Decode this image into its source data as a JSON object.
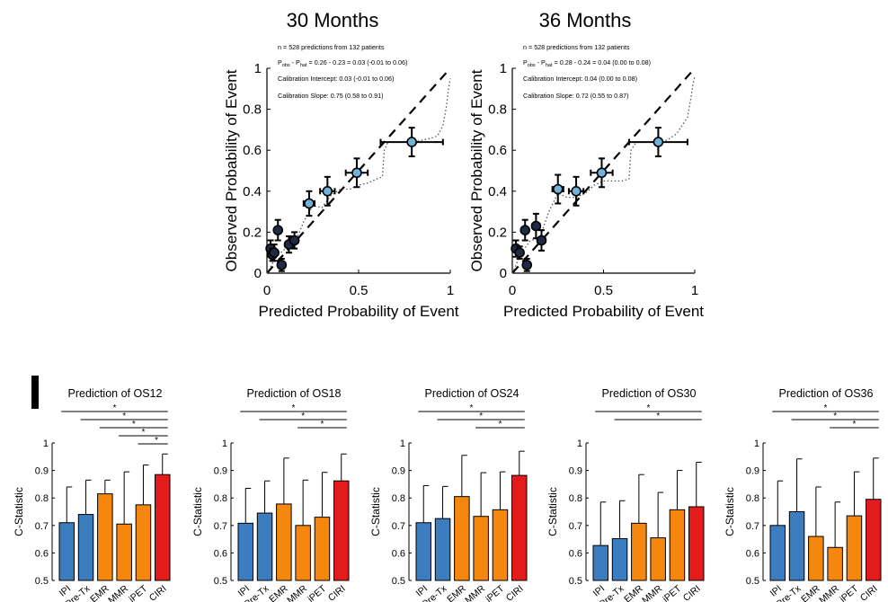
{
  "colors": {
    "point_fill": "#6FB2DA",
    "point_fill_dark": "#1F2A44",
    "bar_blue": "#3B7DBE",
    "bar_orange": "#F5870F",
    "bar_red": "#E31B1B",
    "ink": "#000000"
  },
  "chart_data": [
    {
      "type": "scatter",
      "title": "30 Months",
      "xlabel": "Predicted Probability of Event",
      "ylabel": "Observed Probability of Event",
      "xlim": [
        0,
        1
      ],
      "ylim": [
        0,
        1
      ],
      "xticks": [
        "0",
        "0.5",
        "1"
      ],
      "yticks": [
        "0",
        "0.2",
        "0.4",
        "0.6",
        "0.8",
        "1"
      ],
      "annotations": [
        {
          "text": "n = 528 predictions from 132 patients"
        },
        {
          "text": "P",
          "sub1": "obs",
          "mid": " - P",
          "sub2": "hat",
          "rest": " = 0.26 - 0.23 = 0.03 (-0.01 to 0.06)"
        },
        {
          "text": "Calibration Intercept: 0.03 (-0.01 to 0.06)"
        },
        {
          "text": "Calibration Slope: 0.75 (0.58 to 0.91)"
        }
      ],
      "points": [
        {
          "x": 0.02,
          "y": 0.12,
          "xerr": 0.01,
          "yerr": 0.04,
          "dark": true
        },
        {
          "x": 0.03,
          "y": 0.09,
          "xerr": 0.01,
          "yerr": 0.03,
          "dark": true
        },
        {
          "x": 0.04,
          "y": 0.1,
          "xerr": 0.01,
          "yerr": 0.04,
          "dark": true
        },
        {
          "x": 0.06,
          "y": 0.21,
          "xerr": 0.01,
          "yerr": 0.05,
          "dark": true
        },
        {
          "x": 0.08,
          "y": 0.04,
          "xerr": 0.01,
          "yerr": 0.03,
          "dark": true
        },
        {
          "x": 0.12,
          "y": 0.14,
          "xerr": 0.02,
          "yerr": 0.04,
          "dark": true
        },
        {
          "x": 0.15,
          "y": 0.16,
          "xerr": 0.02,
          "yerr": 0.04,
          "dark": true
        },
        {
          "x": 0.23,
          "y": 0.34,
          "xerr": 0.03,
          "yerr": 0.06,
          "dark": false
        },
        {
          "x": 0.33,
          "y": 0.4,
          "xerr": 0.04,
          "yerr": 0.07,
          "dark": false
        },
        {
          "x": 0.49,
          "y": 0.49,
          "xerr": 0.06,
          "yerr": 0.07,
          "dark": false
        },
        {
          "x": 0.79,
          "y": 0.64,
          "xerr": 0.17,
          "yerr": 0.07,
          "dark": false
        }
      ],
      "curve": [
        [
          0,
          0
        ],
        [
          0.05,
          0.08
        ],
        [
          0.1,
          0.12
        ],
        [
          0.15,
          0.14
        ],
        [
          0.2,
          0.25
        ],
        [
          0.25,
          0.33
        ],
        [
          0.3,
          0.32
        ],
        [
          0.35,
          0.38
        ],
        [
          0.4,
          0.41
        ],
        [
          0.45,
          0.41
        ],
        [
          0.5,
          0.43
        ],
        [
          0.55,
          0.44
        ],
        [
          0.6,
          0.46
        ],
        [
          0.63,
          0.47
        ],
        [
          0.64,
          0.6
        ],
        [
          0.66,
          0.64
        ],
        [
          0.75,
          0.64
        ],
        [
          0.8,
          0.64
        ],
        [
          0.85,
          0.65
        ],
        [
          0.9,
          0.66
        ],
        [
          0.93,
          0.67
        ],
        [
          0.96,
          0.72
        ],
        [
          0.98,
          0.82
        ],
        [
          0.99,
          0.9
        ],
        [
          1.0,
          0.95
        ]
      ]
    },
    {
      "type": "scatter",
      "title": "36 Months",
      "xlabel": "Predicted Probability of Event",
      "ylabel": "Observed Probability of Event",
      "xlim": [
        0,
        1
      ],
      "ylim": [
        0,
        1
      ],
      "xticks": [
        "0",
        "0.5",
        "1"
      ],
      "yticks": [
        "0",
        "0.2",
        "0.4",
        "0.6",
        "0.8",
        "1"
      ],
      "annotations": [
        {
          "text": "n = 528 predictions from 132 patients"
        },
        {
          "text": "P",
          "sub1": "obs",
          "mid": " - P",
          "sub2": "hat",
          "rest": " = 0.28 - 0.24 = 0.04 (0.00 to 0.08)"
        },
        {
          "text": "Calibration Intercept: 0.04 (0.00 to 0.08)"
        },
        {
          "text": "Calibration Slope: 0.72 (0.55 to 0.87)"
        }
      ],
      "points": [
        {
          "x": 0.02,
          "y": 0.12,
          "xerr": 0.01,
          "yerr": 0.04,
          "dark": true
        },
        {
          "x": 0.04,
          "y": 0.1,
          "xerr": 0.01,
          "yerr": 0.03,
          "dark": true
        },
        {
          "x": 0.07,
          "y": 0.21,
          "xerr": 0.01,
          "yerr": 0.05,
          "dark": true
        },
        {
          "x": 0.08,
          "y": 0.04,
          "xerr": 0.01,
          "yerr": 0.03,
          "dark": true
        },
        {
          "x": 0.13,
          "y": 0.23,
          "xerr": 0.02,
          "yerr": 0.06,
          "dark": true
        },
        {
          "x": 0.16,
          "y": 0.16,
          "xerr": 0.02,
          "yerr": 0.05,
          "dark": true
        },
        {
          "x": 0.25,
          "y": 0.41,
          "xerr": 0.03,
          "yerr": 0.07,
          "dark": false
        },
        {
          "x": 0.35,
          "y": 0.4,
          "xerr": 0.04,
          "yerr": 0.07,
          "dark": false
        },
        {
          "x": 0.49,
          "y": 0.49,
          "xerr": 0.06,
          "yerr": 0.07,
          "dark": false
        },
        {
          "x": 0.8,
          "y": 0.64,
          "xerr": 0.16,
          "yerr": 0.07,
          "dark": false
        }
      ],
      "curve": [
        [
          0,
          0
        ],
        [
          0.05,
          0.1
        ],
        [
          0.1,
          0.16
        ],
        [
          0.15,
          0.17
        ],
        [
          0.2,
          0.3
        ],
        [
          0.25,
          0.39
        ],
        [
          0.3,
          0.37
        ],
        [
          0.35,
          0.37
        ],
        [
          0.4,
          0.39
        ],
        [
          0.45,
          0.43
        ],
        [
          0.5,
          0.45
        ],
        [
          0.55,
          0.45
        ],
        [
          0.6,
          0.45
        ],
        [
          0.64,
          0.46
        ],
        [
          0.65,
          0.6
        ],
        [
          0.68,
          0.64
        ],
        [
          0.75,
          0.64
        ],
        [
          0.8,
          0.64
        ],
        [
          0.85,
          0.65
        ],
        [
          0.9,
          0.68
        ],
        [
          0.93,
          0.72
        ],
        [
          0.96,
          0.76
        ],
        [
          0.98,
          0.86
        ],
        [
          0.99,
          0.92
        ],
        [
          1.0,
          0.96
        ]
      ]
    },
    {
      "type": "bar",
      "title": "Prediction of OS12",
      "ylabel": "C-Statistic",
      "ylim": [
        0.5,
        1
      ],
      "yticks": [
        "0.5",
        "0.6",
        "0.7",
        "0.8",
        "0.9",
        "1"
      ],
      "categories": [
        "IPI",
        "All Pre-Tx",
        "EMR",
        "MMR",
        "iPET",
        "CIRI"
      ],
      "values": [
        0.71,
        0.74,
        0.815,
        0.705,
        0.775,
        0.885
      ],
      "errors": [
        0.84,
        0.865,
        0.865,
        0.895,
        0.92,
        0.96
      ],
      "colors": [
        "blue",
        "blue",
        "orange",
        "orange",
        "orange",
        "red"
      ],
      "significance": [
        {
          "from": 0,
          "to": 5,
          "label": "*"
        },
        {
          "from": 1,
          "to": 5,
          "label": "*"
        },
        {
          "from": 2,
          "to": 5,
          "label": "*"
        },
        {
          "from": 3,
          "to": 5,
          "label": "*"
        },
        {
          "from": 4,
          "to": 5,
          "label": "*"
        }
      ]
    },
    {
      "type": "bar",
      "title": "Prediction of OS18",
      "ylabel": "C-Statistic",
      "ylim": [
        0.5,
        1
      ],
      "yticks": [
        "0.5",
        "0.6",
        "0.7",
        "0.8",
        "0.9",
        "1"
      ],
      "categories": [
        "IPI",
        "All Pre-Tx",
        "EMR",
        "MMR",
        "iPET",
        "CIRI"
      ],
      "values": [
        0.708,
        0.745,
        0.778,
        0.7,
        0.73,
        0.862
      ],
      "errors": [
        0.835,
        0.862,
        0.945,
        0.865,
        0.893,
        0.96
      ],
      "colors": [
        "blue",
        "blue",
        "orange",
        "orange",
        "orange",
        "red"
      ],
      "significance": [
        {
          "from": 0,
          "to": 5,
          "label": "*"
        },
        {
          "from": 1,
          "to": 5,
          "label": "*"
        },
        {
          "from": 3,
          "to": 5,
          "label": "*"
        }
      ]
    },
    {
      "type": "bar",
      "title": "Prediction of OS24",
      "ylabel": "C-Statistic",
      "ylim": [
        0.5,
        1
      ],
      "yticks": [
        "0.5",
        "0.6",
        "0.7",
        "0.8",
        "0.9",
        "1"
      ],
      "categories": [
        "IPI",
        "All Pre-Tx",
        "EMR",
        "MMR",
        "iPET",
        "CIRI"
      ],
      "values": [
        0.71,
        0.725,
        0.805,
        0.733,
        0.757,
        0.882
      ],
      "errors": [
        0.845,
        0.842,
        0.955,
        0.892,
        0.895,
        0.97
      ],
      "colors": [
        "blue",
        "blue",
        "orange",
        "orange",
        "orange",
        "red"
      ],
      "significance": [
        {
          "from": 0,
          "to": 5,
          "label": "*"
        },
        {
          "from": 1,
          "to": 5,
          "label": "*"
        },
        {
          "from": 3,
          "to": 5,
          "label": "*"
        }
      ]
    },
    {
      "type": "bar",
      "title": "Prediction of OS30",
      "ylabel": "C-Statistic",
      "ylim": [
        0.5,
        1
      ],
      "yticks": [
        "0.5",
        "0.6",
        "0.7",
        "0.8",
        "0.9",
        "1"
      ],
      "categories": [
        "IPI",
        "All Pre-Tx",
        "EMR",
        "MMR",
        "iPET",
        "CIRI"
      ],
      "values": [
        0.627,
        0.652,
        0.708,
        0.655,
        0.757,
        0.768
      ],
      "errors": [
        0.785,
        0.79,
        0.885,
        0.82,
        0.9,
        0.93
      ],
      "colors": [
        "blue",
        "blue",
        "orange",
        "orange",
        "orange",
        "red"
      ],
      "significance": [
        {
          "from": 0,
          "to": 5,
          "label": "*"
        },
        {
          "from": 1,
          "to": 5,
          "label": "*"
        }
      ]
    },
    {
      "type": "bar",
      "title": "Prediction of OS36",
      "ylabel": "C-Statistic",
      "ylim": [
        0.5,
        1
      ],
      "yticks": [
        "0.5",
        "0.6",
        "0.7",
        "0.8",
        "0.9",
        "1"
      ],
      "categories": [
        "IPI",
        "All Pre-Tx",
        "EMR",
        "MMR",
        "iPET",
        "CIRI"
      ],
      "values": [
        0.7,
        0.75,
        0.66,
        0.62,
        0.735,
        0.795
      ],
      "errors": [
        0.862,
        0.942,
        0.84,
        0.785,
        0.895,
        0.945
      ],
      "colors": [
        "blue",
        "blue",
        "orange",
        "orange",
        "orange",
        "red"
      ],
      "significance": [
        {
          "from": 0,
          "to": 5,
          "label": "*"
        },
        {
          "from": 1,
          "to": 5,
          "label": "*"
        },
        {
          "from": 3,
          "to": 5,
          "label": "*"
        }
      ]
    }
  ]
}
